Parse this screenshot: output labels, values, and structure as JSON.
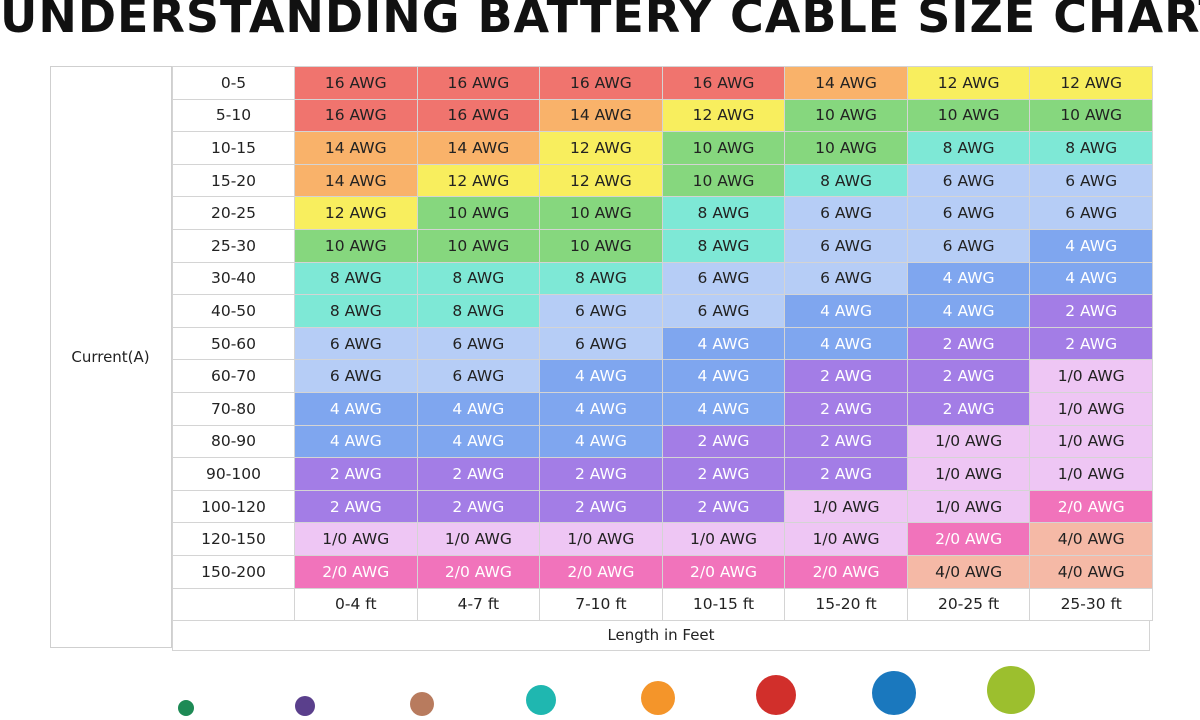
{
  "title": "UNDERSTANDING BATTERY CABLE SIZE CHART",
  "chart_data": {
    "type": "table",
    "ylabel": "Current(A)",
    "xlabel": "Length in Feet",
    "columns": [
      "0-4 ft",
      "4-7 ft",
      "7-10 ft",
      "10-15 ft",
      "15-20 ft",
      "20-25 ft",
      "25-30 ft"
    ],
    "rows": [
      {
        "current": "0-5",
        "values": [
          "16 AWG",
          "16 AWG",
          "16 AWG",
          "16 AWG",
          "14 AWG",
          "12 AWG",
          "12 AWG"
        ]
      },
      {
        "current": "5-10",
        "values": [
          "16 AWG",
          "16 AWG",
          "14 AWG",
          "12 AWG",
          "10 AWG",
          "10 AWG",
          "10 AWG"
        ]
      },
      {
        "current": "10-15",
        "values": [
          "14 AWG",
          "14 AWG",
          "12 AWG",
          "10 AWG",
          "10 AWG",
          "8 AWG",
          "8 AWG"
        ]
      },
      {
        "current": "15-20",
        "values": [
          "14 AWG",
          "12 AWG",
          "12 AWG",
          "10 AWG",
          "8 AWG",
          "6 AWG",
          "6 AWG"
        ]
      },
      {
        "current": "20-25",
        "values": [
          "12 AWG",
          "10 AWG",
          "10 AWG",
          "8 AWG",
          "6 AWG",
          "6 AWG",
          "6 AWG"
        ]
      },
      {
        "current": "25-30",
        "values": [
          "10 AWG",
          "10 AWG",
          "10 AWG",
          "8 AWG",
          "6 AWG",
          "6 AWG",
          "4 AWG"
        ]
      },
      {
        "current": "30-40",
        "values": [
          "8 AWG",
          "8 AWG",
          "8 AWG",
          "6 AWG",
          "6 AWG",
          "4 AWG",
          "4 AWG"
        ]
      },
      {
        "current": "40-50",
        "values": [
          "8 AWG",
          "8 AWG",
          "6 AWG",
          "6 AWG",
          "4 AWG",
          "4 AWG",
          "2 AWG"
        ]
      },
      {
        "current": "50-60",
        "values": [
          "6 AWG",
          "6 AWG",
          "6 AWG",
          "4 AWG",
          "4 AWG",
          "2 AWG",
          "2 AWG"
        ]
      },
      {
        "current": "60-70",
        "values": [
          "6 AWG",
          "6 AWG",
          "4 AWG",
          "4 AWG",
          "2 AWG",
          "2 AWG",
          "1/0 AWG"
        ]
      },
      {
        "current": "70-80",
        "values": [
          "4 AWG",
          "4 AWG",
          "4 AWG",
          "4 AWG",
          "2 AWG",
          "2 AWG",
          "1/0 AWG"
        ]
      },
      {
        "current": "80-90",
        "values": [
          "4 AWG",
          "4 AWG",
          "4 AWG",
          "2 AWG",
          "2 AWG",
          "1/0 AWG",
          "1/0 AWG"
        ]
      },
      {
        "current": "90-100",
        "values": [
          "2 AWG",
          "2 AWG",
          "2 AWG",
          "2 AWG",
          "2 AWG",
          "1/0 AWG",
          "1/0 AWG"
        ]
      },
      {
        "current": "100-120",
        "values": [
          "2 AWG",
          "2 AWG",
          "2 AWG",
          "2 AWG",
          "1/0 AWG",
          "1/0 AWG",
          "2/0 AWG"
        ]
      },
      {
        "current": "120-150",
        "values": [
          "1/0 AWG",
          "1/0 AWG",
          "1/0 AWG",
          "1/0 AWG",
          "1/0 AWG",
          "2/0 AWG",
          "4/0 AWG"
        ]
      },
      {
        "current": "150-200",
        "values": [
          "2/0 AWG",
          "2/0 AWG",
          "2/0 AWG",
          "2/0 AWG",
          "2/0 AWG",
          "4/0 AWG",
          "4/0 AWG"
        ]
      }
    ],
    "gauge_colors": {
      "16 AWG": "#f0746e",
      "14 AWG": "#f9b26a",
      "12 AWG": "#f8ee5e",
      "10 AWG": "#86d77e",
      "8 AWG": "#7ee8d6",
      "6 AWG": "#b6cdf6",
      "4 AWG": "#7fa6ef",
      "2 AWG": "#a37de6",
      "1/0 AWG": "#eec6f4",
      "2/0 AWG": "#f173bb",
      "4/0 AWG": "#f5b9a6"
    },
    "light_text_gauges": [
      "4 AWG",
      "2 AWG",
      "2/0 AWG"
    ]
  },
  "legend_dots": [
    {
      "color": "#1e8a55"
    },
    {
      "color": "#5a3f8c"
    },
    {
      "color": "#b87b5e"
    },
    {
      "color": "#1fb7b0"
    },
    {
      "color": "#f4952a"
    },
    {
      "color": "#d12f2b"
    },
    {
      "color": "#1a78be"
    },
    {
      "color": "#9cbf2e"
    }
  ]
}
